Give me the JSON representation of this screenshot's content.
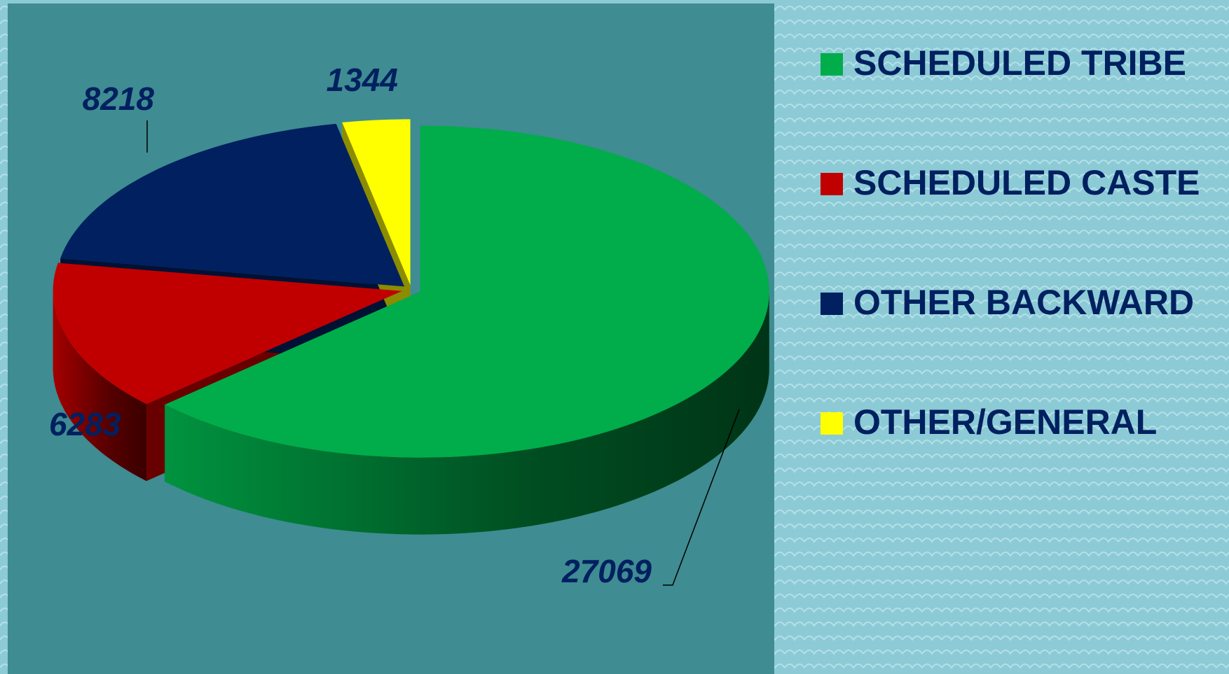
{
  "chart_data": {
    "type": "pie3d",
    "categories": [
      "SCHEDULED TRIBE",
      "SCHEDULED CASTE",
      "OTHER BACKWARD",
      "OTHER/GENERAL"
    ],
    "values": [
      27069,
      6283,
      8218,
      1344
    ],
    "colors": [
      "#00ad4a",
      "#c00000",
      "#002060",
      "#ffff00"
    ],
    "legend": "right"
  }
}
